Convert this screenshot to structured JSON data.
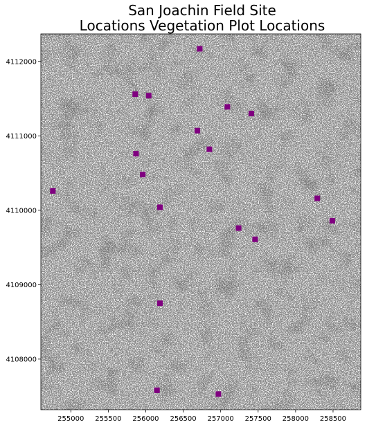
{
  "chart_data": {
    "type": "scatter",
    "title_lines": [
      "San Joachin Field Site",
      "Locations Vegetation Plot Locations"
    ],
    "xlabel": "",
    "ylabel": "",
    "xlim": [
      254600,
      258870
    ],
    "ylim": [
      4107320,
      4112370
    ],
    "x_ticks": [
      255000,
      255500,
      256000,
      256500,
      257000,
      257500,
      258000,
      258500
    ],
    "y_ticks": [
      4108000,
      4109000,
      4110000,
      4111000,
      4112000
    ],
    "grid": false,
    "background": "grayscale vegetation raster",
    "marker": "square",
    "marker_color": "#800080",
    "points": [
      {
        "x": 256720,
        "y": 4112170
      },
      {
        "x": 255860,
        "y": 4111560
      },
      {
        "x": 256040,
        "y": 4111540
      },
      {
        "x": 257090,
        "y": 4111390
      },
      {
        "x": 257410,
        "y": 4111300
      },
      {
        "x": 256690,
        "y": 4111070
      },
      {
        "x": 256850,
        "y": 4110820
      },
      {
        "x": 255870,
        "y": 4110760
      },
      {
        "x": 255960,
        "y": 4110480
      },
      {
        "x": 254760,
        "y": 4110260
      },
      {
        "x": 258290,
        "y": 4110160
      },
      {
        "x": 256190,
        "y": 4110040
      },
      {
        "x": 258490,
        "y": 4109860
      },
      {
        "x": 257240,
        "y": 4109760
      },
      {
        "x": 257460,
        "y": 4109610
      },
      {
        "x": 256190,
        "y": 4108750
      },
      {
        "x": 256150,
        "y": 4107580
      },
      {
        "x": 256970,
        "y": 4107530
      }
    ]
  }
}
